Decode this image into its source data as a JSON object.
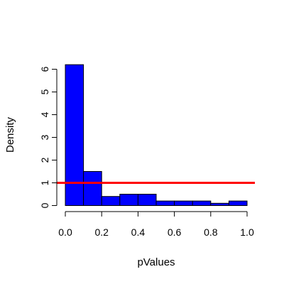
{
  "chart_data": {
    "type": "bar",
    "title": "",
    "xlabel": "pValues",
    "ylabel": "Density",
    "bins": [
      {
        "x0": 0.0,
        "x1": 0.1,
        "density": 6.2
      },
      {
        "x0": 0.1,
        "x1": 0.2,
        "density": 1.5
      },
      {
        "x0": 0.2,
        "x1": 0.3,
        "density": 0.4
      },
      {
        "x0": 0.3,
        "x1": 0.4,
        "density": 0.5
      },
      {
        "x0": 0.4,
        "x1": 0.5,
        "density": 0.5
      },
      {
        "x0": 0.5,
        "x1": 0.6,
        "density": 0.2
      },
      {
        "x0": 0.6,
        "x1": 0.7,
        "density": 0.2
      },
      {
        "x0": 0.7,
        "x1": 0.8,
        "density": 0.2
      },
      {
        "x0": 0.8,
        "x1": 0.9,
        "density": 0.1
      },
      {
        "x0": 0.9,
        "x1": 1.0,
        "density": 0.2
      }
    ],
    "reference_line": {
      "y": 1,
      "color": "#ff0000"
    },
    "bar_color": "#0000ff",
    "xlim": [
      0,
      1
    ],
    "ylim": [
      0,
      6
    ],
    "x_ticks": [
      "0.0",
      "0.2",
      "0.4",
      "0.6",
      "0.8",
      "1.0"
    ],
    "y_ticks": [
      "0",
      "1",
      "2",
      "3",
      "4",
      "5",
      "6"
    ],
    "grid": false,
    "legend": "none"
  }
}
